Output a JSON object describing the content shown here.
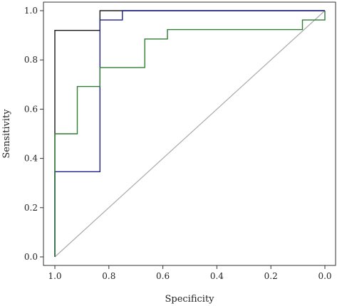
{
  "chart_data": {
    "type": "line",
    "xlabel": "Specificity",
    "ylabel": "Sensitivity",
    "x_reversed": true,
    "xlim": [
      1.0,
      0.0
    ],
    "ylim": [
      0.0,
      1.0
    ],
    "xticks": [
      1.0,
      0.8,
      0.6,
      0.4,
      0.2,
      0.0
    ],
    "yticks": [
      0.0,
      0.2,
      0.4,
      0.6,
      0.8,
      1.0
    ],
    "xtick_labels": [
      "1.0",
      "0.8",
      "0.6",
      "0.4",
      "0.2",
      "0.0"
    ],
    "ytick_labels": [
      "0.0",
      "0.2",
      "0.4",
      "0.6",
      "0.8",
      "1.0"
    ],
    "grid": false,
    "legend": "none",
    "reference_line": {
      "points": [
        [
          1.0,
          0.0
        ],
        [
          0.0,
          1.0
        ]
      ],
      "color": "#aaaaaa"
    },
    "series": [
      {
        "color": "#1a1a1a",
        "points": [
          [
            1.0,
            0.0
          ],
          [
            1.0,
            0.92
          ],
          [
            0.833,
            0.92
          ],
          [
            0.833,
            1.0
          ],
          [
            0.0,
            1.0
          ]
        ]
      },
      {
        "color": "#1f1f8f",
        "points": [
          [
            1.0,
            0.0
          ],
          [
            1.0,
            0.346
          ],
          [
            0.833,
            0.346
          ],
          [
            0.833,
            0.962
          ],
          [
            0.75,
            0.962
          ],
          [
            0.75,
            1.0
          ],
          [
            0.0,
            1.0
          ]
        ]
      },
      {
        "color": "#2e7d32",
        "points": [
          [
            1.0,
            0.0
          ],
          [
            1.0,
            0.5
          ],
          [
            0.917,
            0.5
          ],
          [
            0.917,
            0.692
          ],
          [
            0.833,
            0.692
          ],
          [
            0.833,
            0.769
          ],
          [
            0.667,
            0.769
          ],
          [
            0.667,
            0.885
          ],
          [
            0.583,
            0.885
          ],
          [
            0.583,
            0.923
          ],
          [
            0.083,
            0.923
          ],
          [
            0.083,
            0.962
          ],
          [
            0.0,
            0.962
          ],
          [
            0.0,
            1.0
          ]
        ]
      }
    ]
  }
}
